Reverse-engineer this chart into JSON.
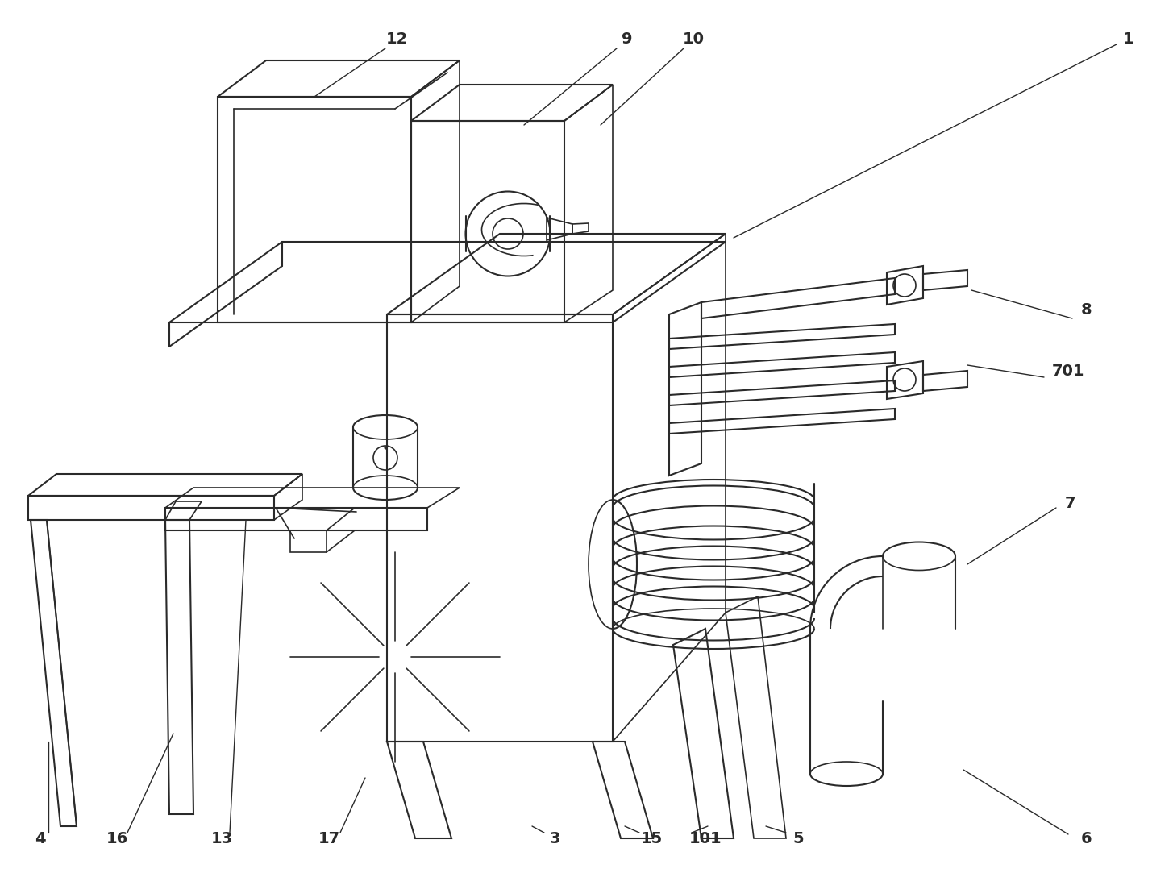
{
  "bg_color": "#ffffff",
  "line_color": "#2a2a2a",
  "line_width": 1.5,
  "label_fontsize": 14,
  "label_fontweight": "bold"
}
